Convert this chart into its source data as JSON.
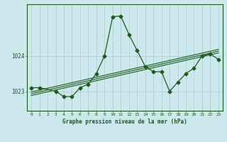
{
  "title": "Graphe pression niveau de la mer (hPa)",
  "background_color": "#cce8ec",
  "grid_color": "#aacfd4",
  "line_color": "#1a5c1a",
  "x_ticks": [
    0,
    1,
    2,
    3,
    4,
    5,
    6,
    7,
    8,
    9,
    10,
    11,
    12,
    13,
    14,
    15,
    16,
    17,
    18,
    19,
    20,
    21,
    22,
    23
  ],
  "y_ticks": [
    1023,
    1024
  ],
  "ylim": [
    1022.45,
    1025.45
  ],
  "xlim": [
    -0.5,
    23.5
  ],
  "series1": {
    "x": [
      0,
      1,
      3,
      4,
      5,
      6,
      7,
      8,
      9,
      10,
      11,
      12,
      13,
      14,
      15,
      16,
      17,
      18,
      19,
      20,
      21,
      22,
      23
    ],
    "y": [
      1023.1,
      1023.1,
      1023.0,
      1022.85,
      1022.85,
      1023.1,
      1023.2,
      1023.5,
      1024.0,
      1025.1,
      1025.12,
      1024.6,
      1024.15,
      1023.7,
      1023.55,
      1023.55,
      1023.0,
      1023.25,
      1023.5,
      1023.65,
      1024.0,
      1024.05,
      1023.9
    ]
  },
  "series2": {
    "x": [
      0,
      23
    ],
    "y": [
      1022.88,
      1024.08
    ]
  },
  "series3": {
    "x": [
      0,
      23
    ],
    "y": [
      1022.93,
      1024.13
    ]
  },
  "series4": {
    "x": [
      0,
      23
    ],
    "y": [
      1022.98,
      1024.18
    ]
  }
}
